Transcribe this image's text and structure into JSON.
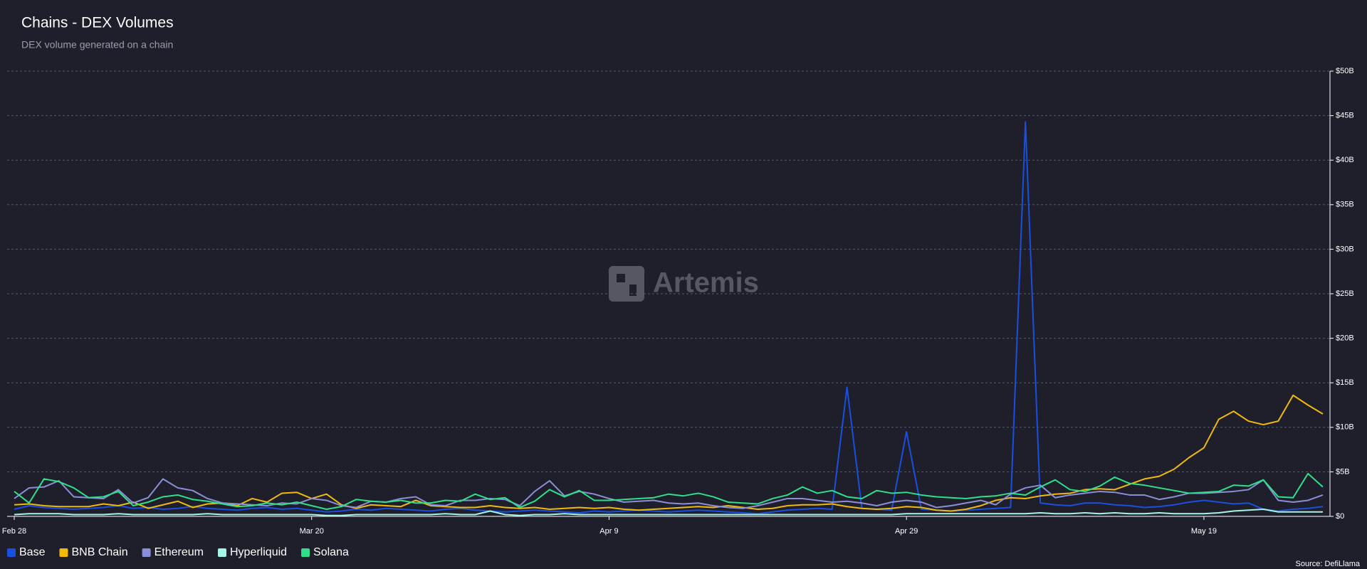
{
  "chart_data": {
    "type": "line",
    "title": "Chains - DEX Volumes",
    "subtitle": "DEX volume generated on a chain",
    "watermark": "Artemis",
    "source": "Source: DefiLlama",
    "categories": [
      "Feb 28",
      null,
      null,
      null,
      null,
      null,
      null,
      null,
      null,
      null,
      null,
      null,
      null,
      null,
      null,
      null,
      null,
      null,
      null,
      null,
      "Mar 20",
      null,
      null,
      null,
      null,
      null,
      null,
      null,
      null,
      null,
      null,
      null,
      null,
      null,
      null,
      null,
      null,
      null,
      null,
      null,
      "Apr 9",
      null,
      null,
      null,
      null,
      null,
      null,
      null,
      null,
      null,
      null,
      null,
      null,
      null,
      null,
      null,
      null,
      null,
      null,
      null,
      "Apr 29",
      null,
      null,
      null,
      null,
      null,
      null,
      null,
      null,
      null,
      null,
      null,
      null,
      null,
      null,
      null,
      null,
      null,
      null,
      null,
      "May 19",
      null,
      null,
      null,
      null,
      null,
      null,
      null,
      null
    ],
    "ylim": [
      0,
      50
    ],
    "yticks": [
      {
        "value": 0,
        "label": "$0"
      },
      {
        "value": 5,
        "label": "$5B"
      },
      {
        "value": 10,
        "label": "$10B"
      },
      {
        "value": 15,
        "label": "$15B"
      },
      {
        "value": 20,
        "label": "$20B"
      },
      {
        "value": 25,
        "label": "$25B"
      },
      {
        "value": 30,
        "label": "$30B"
      },
      {
        "value": 35,
        "label": "$35B"
      },
      {
        "value": 40,
        "label": "$40B"
      },
      {
        "value": 45,
        "label": "$45B"
      },
      {
        "value": 50,
        "label": "$50B"
      }
    ],
    "grid": true,
    "legend": "bottom-left",
    "series": [
      {
        "name": "Base",
        "color": "#1a4fe0",
        "values": [
          0.8,
          1.2,
          1.0,
          0.9,
          0.8,
          0.9,
          1.0,
          1.2,
          0.9,
          1.0,
          0.8,
          0.9,
          1.1,
          0.9,
          0.8,
          0.7,
          0.9,
          1.0,
          0.8,
          0.9,
          0.7,
          0.5,
          0.6,
          0.8,
          0.7,
          0.9,
          0.8,
          0.7,
          0.6,
          0.8,
          0.9,
          0.7,
          0.6,
          0.5,
          0.6,
          0.7,
          0.6,
          0.5,
          0.4,
          0.6,
          0.5,
          0.6,
          0.7,
          0.6,
          0.5,
          0.6,
          0.7,
          0.6,
          0.5,
          0.4,
          0.3,
          0.5,
          0.7,
          0.8,
          0.9,
          0.8,
          14.5,
          0.9,
          0.8,
          0.7,
          9.5,
          0.8,
          0.7,
          0.6,
          0.7,
          0.8,
          0.9,
          1.0,
          44.3,
          1.5,
          1.3,
          1.2,
          1.5,
          1.5,
          1.3,
          1.2,
          1.0,
          1.1,
          1.3,
          1.6,
          1.8,
          1.6,
          1.4,
          1.5,
          0.8,
          0.6,
          0.8,
          0.9,
          1.1
        ]
      },
      {
        "name": "BNB Chain",
        "color": "#f0b90b",
        "values": [
          1.3,
          1.4,
          1.2,
          1.1,
          1.1,
          1.1,
          1.4,
          1.2,
          1.6,
          0.9,
          1.3,
          1.7,
          1.0,
          1.4,
          1.5,
          1.2,
          2.0,
          1.6,
          2.6,
          2.7,
          2.0,
          2.5,
          1.3,
          0.9,
          1.3,
          1.2,
          1.1,
          1.8,
          1.2,
          1.1,
          1.0,
          1.0,
          1.2,
          1.0,
          0.9,
          1.0,
          0.8,
          0.9,
          1.0,
          0.9,
          1.0,
          0.8,
          0.7,
          0.8,
          0.9,
          1.0,
          1.1,
          1.0,
          1.2,
          1.0,
          0.8,
          0.9,
          1.2,
          1.3,
          1.3,
          1.4,
          1.1,
          0.9,
          0.8,
          0.9,
          1.1,
          1.0,
          0.7,
          0.6,
          0.8,
          1.2,
          1.8,
          2.1,
          2.0,
          2.3,
          2.5,
          2.6,
          3.0,
          3.1,
          3.0,
          3.6,
          4.2,
          4.5,
          5.3,
          6.6,
          7.7,
          10.9,
          11.8,
          10.7,
          10.3,
          10.7,
          13.6,
          12.5,
          11.5
        ]
      },
      {
        "name": "Ethereum",
        "color": "#8a8fd8",
        "values": [
          2.0,
          3.2,
          3.3,
          4.0,
          2.2,
          2.1,
          2.0,
          3.0,
          1.5,
          2.1,
          4.2,
          3.2,
          2.9,
          2.0,
          1.5,
          1.4,
          1.3,
          1.2,
          1.5,
          1.4,
          2.0,
          1.8,
          1.2,
          1.0,
          1.7,
          1.6,
          2.0,
          2.2,
          1.3,
          1.2,
          1.8,
          1.8,
          2.0,
          1.9,
          1.2,
          2.8,
          4.0,
          2.3,
          2.8,
          2.5,
          2.0,
          1.6,
          1.7,
          1.8,
          1.5,
          1.4,
          1.5,
          1.2,
          1.0,
          0.9,
          1.2,
          1.6,
          2.0,
          2.0,
          1.8,
          1.6,
          1.7,
          1.5,
          1.2,
          1.6,
          1.8,
          1.6,
          1.0,
          1.2,
          1.5,
          1.8,
          1.3,
          2.5,
          3.2,
          3.5,
          2.1,
          2.4,
          2.6,
          2.8,
          2.7,
          2.4,
          2.4,
          1.9,
          2.2,
          2.6,
          2.6,
          2.7,
          2.8,
          3.0,
          4.1,
          1.8,
          1.6,
          1.8,
          2.4
        ]
      },
      {
        "name": "Hyperliquid",
        "color": "#a6f5e4",
        "values": [
          0.2,
          0.3,
          0.3,
          0.3,
          0.2,
          0.2,
          0.2,
          0.3,
          0.2,
          0.2,
          0.2,
          0.2,
          0.2,
          0.3,
          0.2,
          0.2,
          0.2,
          0.2,
          0.2,
          0.2,
          0.2,
          0.1,
          0.1,
          0.2,
          0.2,
          0.2,
          0.2,
          0.2,
          0.2,
          0.3,
          0.2,
          0.2,
          0.6,
          0.2,
          0.1,
          0.2,
          0.2,
          0.3,
          0.2,
          0.2,
          0.2,
          0.2,
          0.2,
          0.2,
          0.2,
          0.2,
          0.2,
          0.2,
          0.2,
          0.2,
          0.2,
          0.2,
          0.2,
          0.2,
          0.2,
          0.2,
          0.2,
          0.2,
          0.2,
          0.2,
          0.3,
          0.3,
          0.3,
          0.3,
          0.3,
          0.3,
          0.3,
          0.3,
          0.3,
          0.4,
          0.3,
          0.3,
          0.4,
          0.3,
          0.4,
          0.3,
          0.3,
          0.4,
          0.3,
          0.3,
          0.3,
          0.4,
          0.6,
          0.7,
          0.8,
          0.5,
          0.5,
          0.5,
          0.5
        ]
      },
      {
        "name": "Solana",
        "color": "#2ee08a",
        "values": [
          2.8,
          1.5,
          4.2,
          3.9,
          3.2,
          2.1,
          2.2,
          2.8,
          1.2,
          1.6,
          2.2,
          2.4,
          1.9,
          1.7,
          1.4,
          1.1,
          1.2,
          1.5,
          1.3,
          1.6,
          1.2,
          0.8,
          1.1,
          1.9,
          1.7,
          1.6,
          1.8,
          1.5,
          1.5,
          1.8,
          1.7,
          2.5,
          1.9,
          2.1,
          1.0,
          1.7,
          3.0,
          2.2,
          2.9,
          1.8,
          1.8,
          1.9,
          2.0,
          2.1,
          2.5,
          2.3,
          2.6,
          2.2,
          1.6,
          1.5,
          1.4,
          2.0,
          2.4,
          3.3,
          2.6,
          2.9,
          2.2,
          2.0,
          2.9,
          2.6,
          2.7,
          2.4,
          2.2,
          2.1,
          2.0,
          2.2,
          2.3,
          2.6,
          2.4,
          3.3,
          4.1,
          3.0,
          2.8,
          3.4,
          4.4,
          3.7,
          3.5,
          3.2,
          2.9,
          2.6,
          2.7,
          2.8,
          3.5,
          3.4,
          4.1,
          2.2,
          2.1,
          4.8,
          3.3
        ]
      }
    ]
  }
}
